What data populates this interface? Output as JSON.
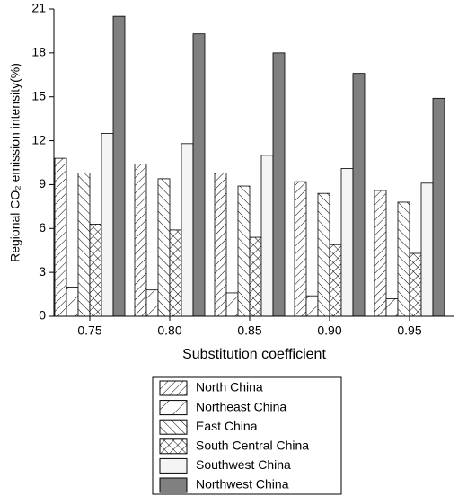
{
  "chart_data": {
    "type": "bar",
    "y_label": "Regional CO₂ emission intensity(%)",
    "x_label": "Substitution coefficient",
    "categories": [
      "0.75",
      "0.80",
      "0.85",
      "0.90",
      "0.95"
    ],
    "series": [
      {
        "name": "North China",
        "color": "#ffffff",
        "hatch": "diag-right",
        "values": [
          10.8,
          10.4,
          9.8,
          9.2,
          8.6
        ]
      },
      {
        "name": "Northeast China",
        "color": "#ffffff",
        "hatch": "diag-right-sparse",
        "values": [
          2.0,
          1.8,
          1.6,
          1.4,
          1.2
        ]
      },
      {
        "name": "East China",
        "color": "#ffffff",
        "hatch": "diag-left",
        "values": [
          9.8,
          9.4,
          8.9,
          8.4,
          7.8
        ]
      },
      {
        "name": "South Central China",
        "color": "#ffffff",
        "hatch": "cross",
        "values": [
          6.3,
          5.9,
          5.4,
          4.9,
          4.3
        ]
      },
      {
        "name": "Southwest China",
        "color": "#f4f4f4",
        "hatch": "none",
        "values": [
          12.5,
          11.8,
          11.0,
          10.1,
          9.1
        ]
      },
      {
        "name": "Northwest China",
        "color": "#808080",
        "hatch": "none",
        "values": [
          20.5,
          19.3,
          18.0,
          16.6,
          14.9
        ]
      }
    ],
    "ylim": [
      0,
      21
    ],
    "yticks": [
      0,
      3,
      6,
      9,
      12,
      15,
      18,
      21
    ]
  }
}
